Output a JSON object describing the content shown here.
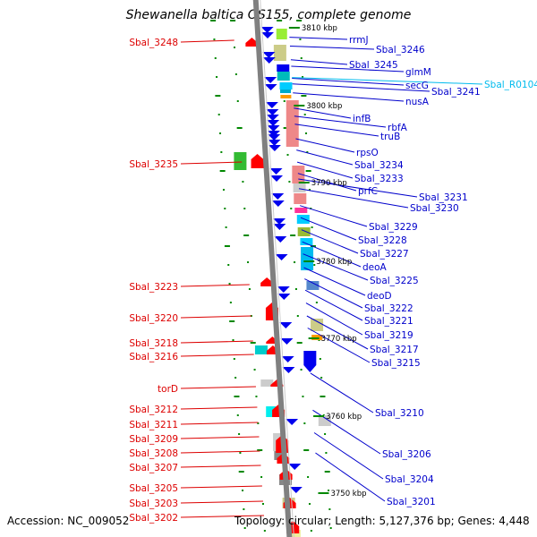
{
  "title": "Shewanella baltica OS155, complete genome",
  "footer": {
    "accession": "Accession: NC_009052",
    "summary": "Topology: circular; Length: 5,127,376 bp; Genes: 4,448"
  },
  "colors": {
    "left_label": "#dd0000",
    "right_label": "#0000cc",
    "rna_label": "#00bbee",
    "left_gene": "#ff0000",
    "right_gene": "#0000ee",
    "backbone": "#808080",
    "tick": "#008800"
  },
  "kbp_ticks": [
    "3810 kbp",
    "3800 kbp",
    "3790 kbp",
    "3780 kbp",
    "3770 kbp",
    "3760 kbp",
    "3750 kbp"
  ],
  "left_labels": [
    "Sbal_3248",
    "Sbal_3235",
    "Sbal_3223",
    "Sbal_3220",
    "Sbal_3218",
    "Sbal_3216",
    "torD",
    "Sbal_3212",
    "Sbal_3211",
    "Sbal_3209",
    "Sbal_3208",
    "Sbal_3207",
    "Sbal_3205",
    "Sbal_3203",
    "Sbal_3202"
  ],
  "right_labels": [
    "rrmJ",
    "Sbal_3246",
    "Sbal_3245",
    "glmM",
    "secG",
    "Sbal_3241",
    "Sbal_R0104",
    "nusA",
    "infB",
    "rbfA",
    "truB",
    "rpsO",
    "Sbal_3234",
    "Sbal_3233",
    "prfC",
    "Sbal_3231",
    "Sbal_3230",
    "Sbal_3229",
    "Sbal_3228",
    "Sbal_3227",
    "deoA",
    "Sbal_3225",
    "deoD",
    "Sbal_3222",
    "Sbal_3221",
    "Sbal_3219",
    "Sbal_3217",
    "Sbal_3215",
    "Sbal_3210",
    "Sbal_3206",
    "Sbal_3204",
    "Sbal_3201"
  ]
}
